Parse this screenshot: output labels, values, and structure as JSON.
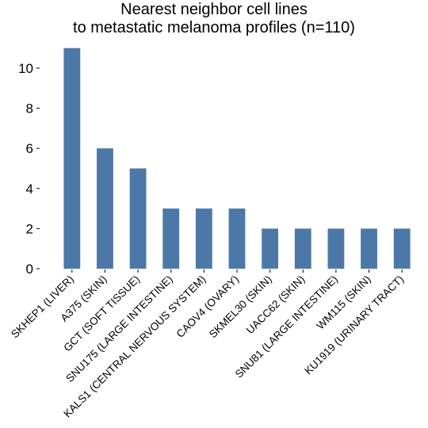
{
  "chart_data": {
    "type": "bar",
    "title_lines": [
      "Nearest neighbor cell lines",
      "to metastatic melanoma profiles (n=110)"
    ],
    "xlabel": "",
    "ylabel": "",
    "categories": [
      "SKHEP1 (LIVER)",
      "A375 (SKIN)",
      "GCT (SOFT TISSUE)",
      "SNU175 (LARGE INTESTINE)",
      "KALS1 (CENTRAL NERVOUS SYSTEM)",
      "CAOV4 (OVARY)",
      "SKMEL30 (SKIN)",
      "UACC62 (SKIN)",
      "SNU81 (LARGE INTESTINE)",
      "WM115 (SKIN)",
      "KU1919 (URINARY TRACT)"
    ],
    "values": [
      11,
      6,
      5,
      3,
      3,
      3,
      2,
      2,
      2,
      2,
      2
    ],
    "yticks": [
      0,
      2,
      4,
      6,
      8,
      10
    ],
    "ylim": [
      0,
      11.5
    ],
    "bar_color": "#4c78a8",
    "grid": false,
    "legend": "none"
  }
}
